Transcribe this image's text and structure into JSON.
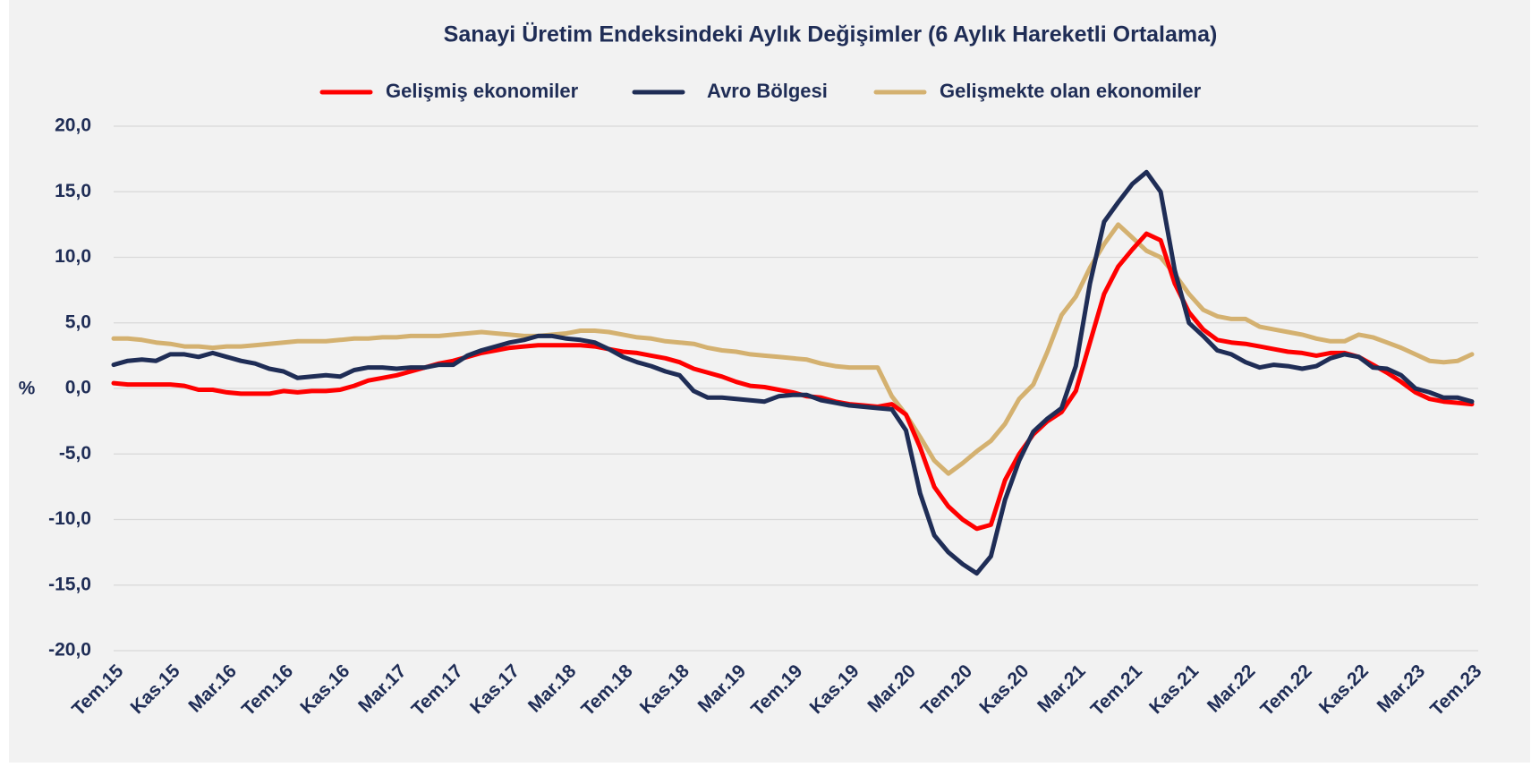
{
  "chart_data": {
    "type": "line",
    "title": "Sanayi Üretim Endeksindeki Aylık Değişimler (6 Aylık Hareketli Ortalama)",
    "ylabel": "%",
    "categories": [
      "Tem.15",
      null,
      null,
      null,
      "Kas.15",
      null,
      null,
      null,
      "Mar.16",
      null,
      null,
      null,
      "Tem.16",
      null,
      null,
      null,
      "Kas.16",
      null,
      null,
      null,
      "Mar.17",
      null,
      null,
      null,
      "Tem.17",
      null,
      null,
      null,
      "Kas.17",
      null,
      null,
      null,
      "Mar.18",
      null,
      null,
      null,
      "Tem.18",
      null,
      null,
      null,
      "Kas.18",
      null,
      null,
      null,
      "Mar.19",
      null,
      null,
      null,
      "Tem.19",
      null,
      null,
      null,
      "Kas.19",
      null,
      null,
      null,
      "Mar.20",
      null,
      null,
      null,
      "Tem.20",
      null,
      null,
      null,
      "Kas.20",
      null,
      null,
      null,
      "Mar.21",
      null,
      null,
      null,
      "Tem.21",
      null,
      null,
      null,
      "Kas.21",
      null,
      null,
      null,
      "Mar.22",
      null,
      null,
      null,
      "Tem.22",
      null,
      null,
      null,
      "Kas.22",
      null,
      null,
      null,
      "Mar.23",
      null,
      null,
      null,
      "Tem.23"
    ],
    "series": [
      {
        "name": "Gelişmiş ekonomiler",
        "color": "#ff0000",
        "values": [
          0.4,
          0.3,
          0.3,
          0.3,
          0.3,
          0.2,
          -0.1,
          -0.1,
          -0.3,
          -0.4,
          -0.4,
          -0.4,
          -0.2,
          -0.3,
          -0.2,
          -0.2,
          -0.1,
          0.2,
          0.6,
          0.8,
          1.0,
          1.3,
          1.6,
          1.9,
          2.1,
          2.4,
          2.7,
          2.9,
          3.1,
          3.2,
          3.3,
          3.3,
          3.3,
          3.3,
          3.2,
          3.0,
          2.8,
          2.7,
          2.5,
          2.3,
          2.0,
          1.5,
          1.2,
          0.9,
          0.5,
          0.2,
          0.1,
          -0.1,
          -0.3,
          -0.6,
          -0.7,
          -1.0,
          -1.2,
          -1.3,
          -1.4,
          -1.2,
          -2.0,
          -4.5,
          -7.5,
          -9.0,
          -10.0,
          -10.7,
          -10.4,
          -7.0,
          -5.0,
          -3.5,
          -2.5,
          -1.8,
          -0.2,
          3.5,
          7.2,
          9.3,
          10.6,
          11.8,
          11.3,
          8.0,
          5.8,
          4.5,
          3.7,
          3.5,
          3.4,
          3.2,
          3.0,
          2.8,
          2.7,
          2.5,
          2.7,
          2.7,
          2.4,
          1.8,
          1.2,
          0.5,
          -0.3,
          -0.8,
          -1.0,
          -1.1,
          -1.2
        ]
      },
      {
        "name": "Avro Bölgesi",
        "color": "#1f2d56",
        "values": [
          1.8,
          2.1,
          2.2,
          2.1,
          2.6,
          2.6,
          2.4,
          2.7,
          2.4,
          2.1,
          1.9,
          1.5,
          1.3,
          0.8,
          0.9,
          1.0,
          0.9,
          1.4,
          1.6,
          1.6,
          1.5,
          1.6,
          1.6,
          1.8,
          1.8,
          2.5,
          2.9,
          3.2,
          3.5,
          3.7,
          4.0,
          4.0,
          3.8,
          3.7,
          3.5,
          3.0,
          2.4,
          2.0,
          1.7,
          1.3,
          1.0,
          -0.2,
          -0.7,
          -0.7,
          -0.8,
          -0.9,
          -1.0,
          -0.6,
          -0.5,
          -0.5,
          -0.9,
          -1.1,
          -1.3,
          -1.4,
          -1.5,
          -1.6,
          -3.2,
          -8.0,
          -11.2,
          -12.5,
          -13.4,
          -14.1,
          -12.8,
          -8.5,
          -5.5,
          -3.3,
          -2.3,
          -1.5,
          1.7,
          8.0,
          12.7,
          14.2,
          15.6,
          16.5,
          15.0,
          9.0,
          5.0,
          4.0,
          2.9,
          2.6,
          2.0,
          1.6,
          1.8,
          1.7,
          1.5,
          1.7,
          2.3,
          2.6,
          2.4,
          1.6,
          1.5,
          1.0,
          0.0,
          -0.3,
          -0.7,
          -0.7,
          -1.0
        ]
      },
      {
        "name": "Gelişmekte olan ekonomiler",
        "color": "#d4b170",
        "values": [
          3.8,
          3.8,
          3.7,
          3.5,
          3.4,
          3.2,
          3.2,
          3.1,
          3.2,
          3.2,
          3.3,
          3.4,
          3.5,
          3.6,
          3.6,
          3.6,
          3.7,
          3.8,
          3.8,
          3.9,
          3.9,
          4.0,
          4.0,
          4.0,
          4.1,
          4.2,
          4.3,
          4.2,
          4.1,
          4.0,
          4.0,
          4.1,
          4.2,
          4.4,
          4.4,
          4.3,
          4.1,
          3.9,
          3.8,
          3.6,
          3.5,
          3.4,
          3.1,
          2.9,
          2.8,
          2.6,
          2.5,
          2.4,
          2.3,
          2.2,
          1.9,
          1.7,
          1.6,
          1.6,
          1.6,
          -0.6,
          -2.0,
          -3.7,
          -5.5,
          -6.5,
          -5.7,
          -4.8,
          -4.0,
          -2.7,
          -0.8,
          0.3,
          2.8,
          5.6,
          7.0,
          9.2,
          11.0,
          12.5,
          11.5,
          10.5,
          10.0,
          8.7,
          7.2,
          6.0,
          5.5,
          5.3,
          5.3,
          4.7,
          4.5,
          4.3,
          4.1,
          3.8,
          3.6,
          3.6,
          4.1,
          3.9,
          3.5,
          3.1,
          2.6,
          2.1,
          2.0,
          2.1,
          2.6
        ]
      }
    ],
    "ylim": [
      -20,
      20
    ],
    "yticks": [
      {
        "value": 20,
        "label": "20,0"
      },
      {
        "value": 15,
        "label": "15,0"
      },
      {
        "value": 10,
        "label": "10,0"
      },
      {
        "value": 5,
        "label": "5,0"
      },
      {
        "value": 0,
        "label": "0,0"
      },
      {
        "value": -5,
        "label": "-5,0"
      },
      {
        "value": -10,
        "label": "-10,0"
      },
      {
        "value": -15,
        "label": "-15,0"
      },
      {
        "value": -20,
        "label": "-20,0"
      }
    ],
    "grid": true
  }
}
